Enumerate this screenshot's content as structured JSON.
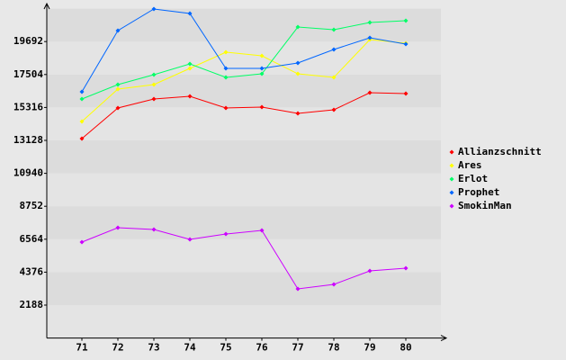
{
  "chart_data": {
    "type": "line",
    "categories": [
      "71",
      "72",
      "73",
      "74",
      "75",
      "76",
      "77",
      "78",
      "79",
      "80"
    ],
    "series": [
      {
        "name": "Allianzschnitt",
        "color": "#ff0000",
        "values": [
          13247,
          15280,
          15878,
          16057,
          15280,
          15340,
          14921,
          15160,
          16296,
          16236
        ]
      },
      {
        "name": "Ares",
        "color": "#ffff00",
        "values": [
          14383,
          16535,
          16834,
          17910,
          18986,
          18747,
          17551,
          17312,
          19823,
          19584
        ]
      },
      {
        "name": "Erlot",
        "color": "#00ff66",
        "values": [
          15878,
          16834,
          17492,
          18209,
          17312,
          17551,
          20660,
          20481,
          20959,
          21079
        ]
      },
      {
        "name": "Prophet",
        "color": "#0066ff",
        "values": [
          16356,
          20421,
          21856,
          21557,
          17910,
          17910,
          18269,
          19166,
          19943,
          19524
        ]
      },
      {
        "name": "SmokinMan",
        "color": "#cc00ff",
        "values": [
          6373,
          7329,
          7209,
          6552,
          6911,
          7150,
          3264,
          3563,
          4460,
          4639
        ]
      }
    ],
    "ylim": [
      0,
      21880
    ],
    "yticks": [
      2188,
      4376,
      6564,
      8752,
      10940,
      13128,
      15316,
      17504,
      19692
    ],
    "grid": true,
    "legend": "right"
  }
}
